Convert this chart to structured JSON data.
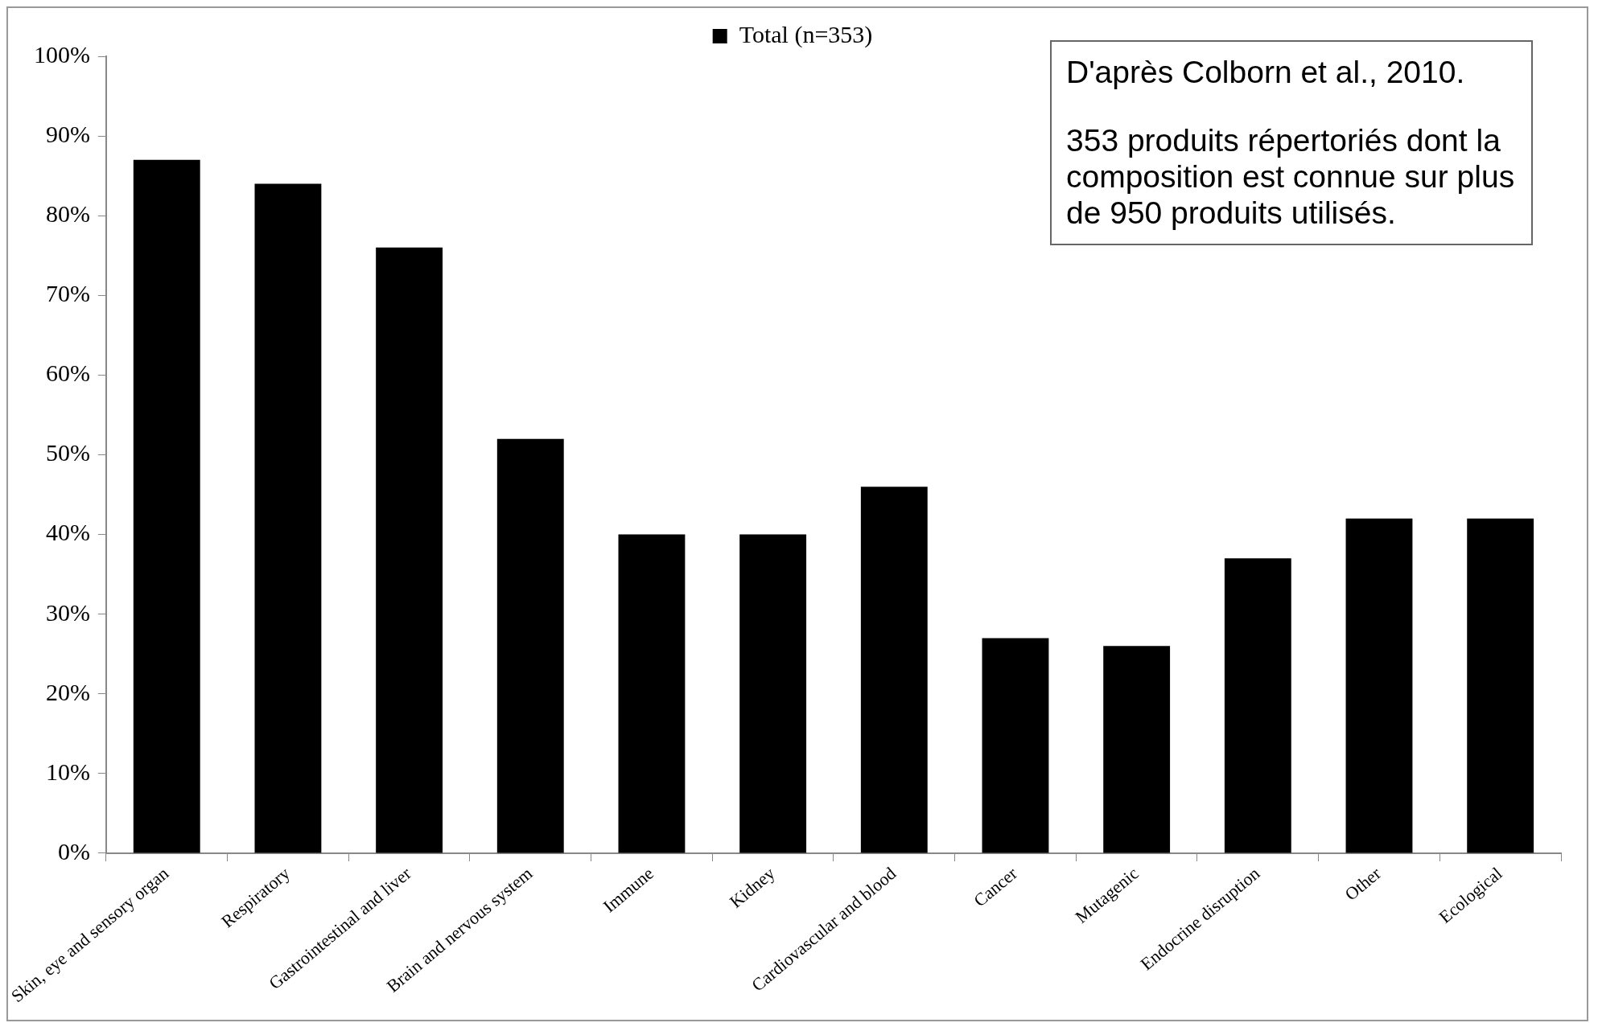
{
  "chart_data": {
    "type": "bar",
    "categories": [
      "Skin, eye and sensory organ",
      "Respiratory",
      "Gastrointestinal and liver",
      "Brain and nervous system",
      "Immune",
      "Kidney",
      "Cardiovascular and blood",
      "Cancer",
      "Mutagenic",
      "Endocrine disruption",
      "Other",
      "Ecological"
    ],
    "series": [
      {
        "name": "Total (n=353)",
        "color": "#000000",
        "values": [
          87,
          84,
          76,
          52,
          40,
          40,
          46,
          27,
          26,
          37,
          42,
          42
        ]
      }
    ],
    "ylim": [
      0,
      100
    ],
    "yticks": [
      {
        "value": 0,
        "label": "0%"
      },
      {
        "value": 10,
        "label": "10%"
      },
      {
        "value": 20,
        "label": "20%"
      },
      {
        "value": 30,
        "label": "30%"
      },
      {
        "value": 40,
        "label": "40%"
      },
      {
        "value": 50,
        "label": "50%"
      },
      {
        "value": 60,
        "label": "60%"
      },
      {
        "value": 70,
        "label": "70%"
      },
      {
        "value": 80,
        "label": "80%"
      },
      {
        "value": 90,
        "label": "90%"
      },
      {
        "value": 100,
        "label": "100%"
      }
    ],
    "grid": false,
    "legend": "top",
    "annotations": [
      "D'après Colborn et al., 2010.",
      "353 produits répertoriés dont la composition est connue sur plus de 950 produits utilisés."
    ]
  }
}
